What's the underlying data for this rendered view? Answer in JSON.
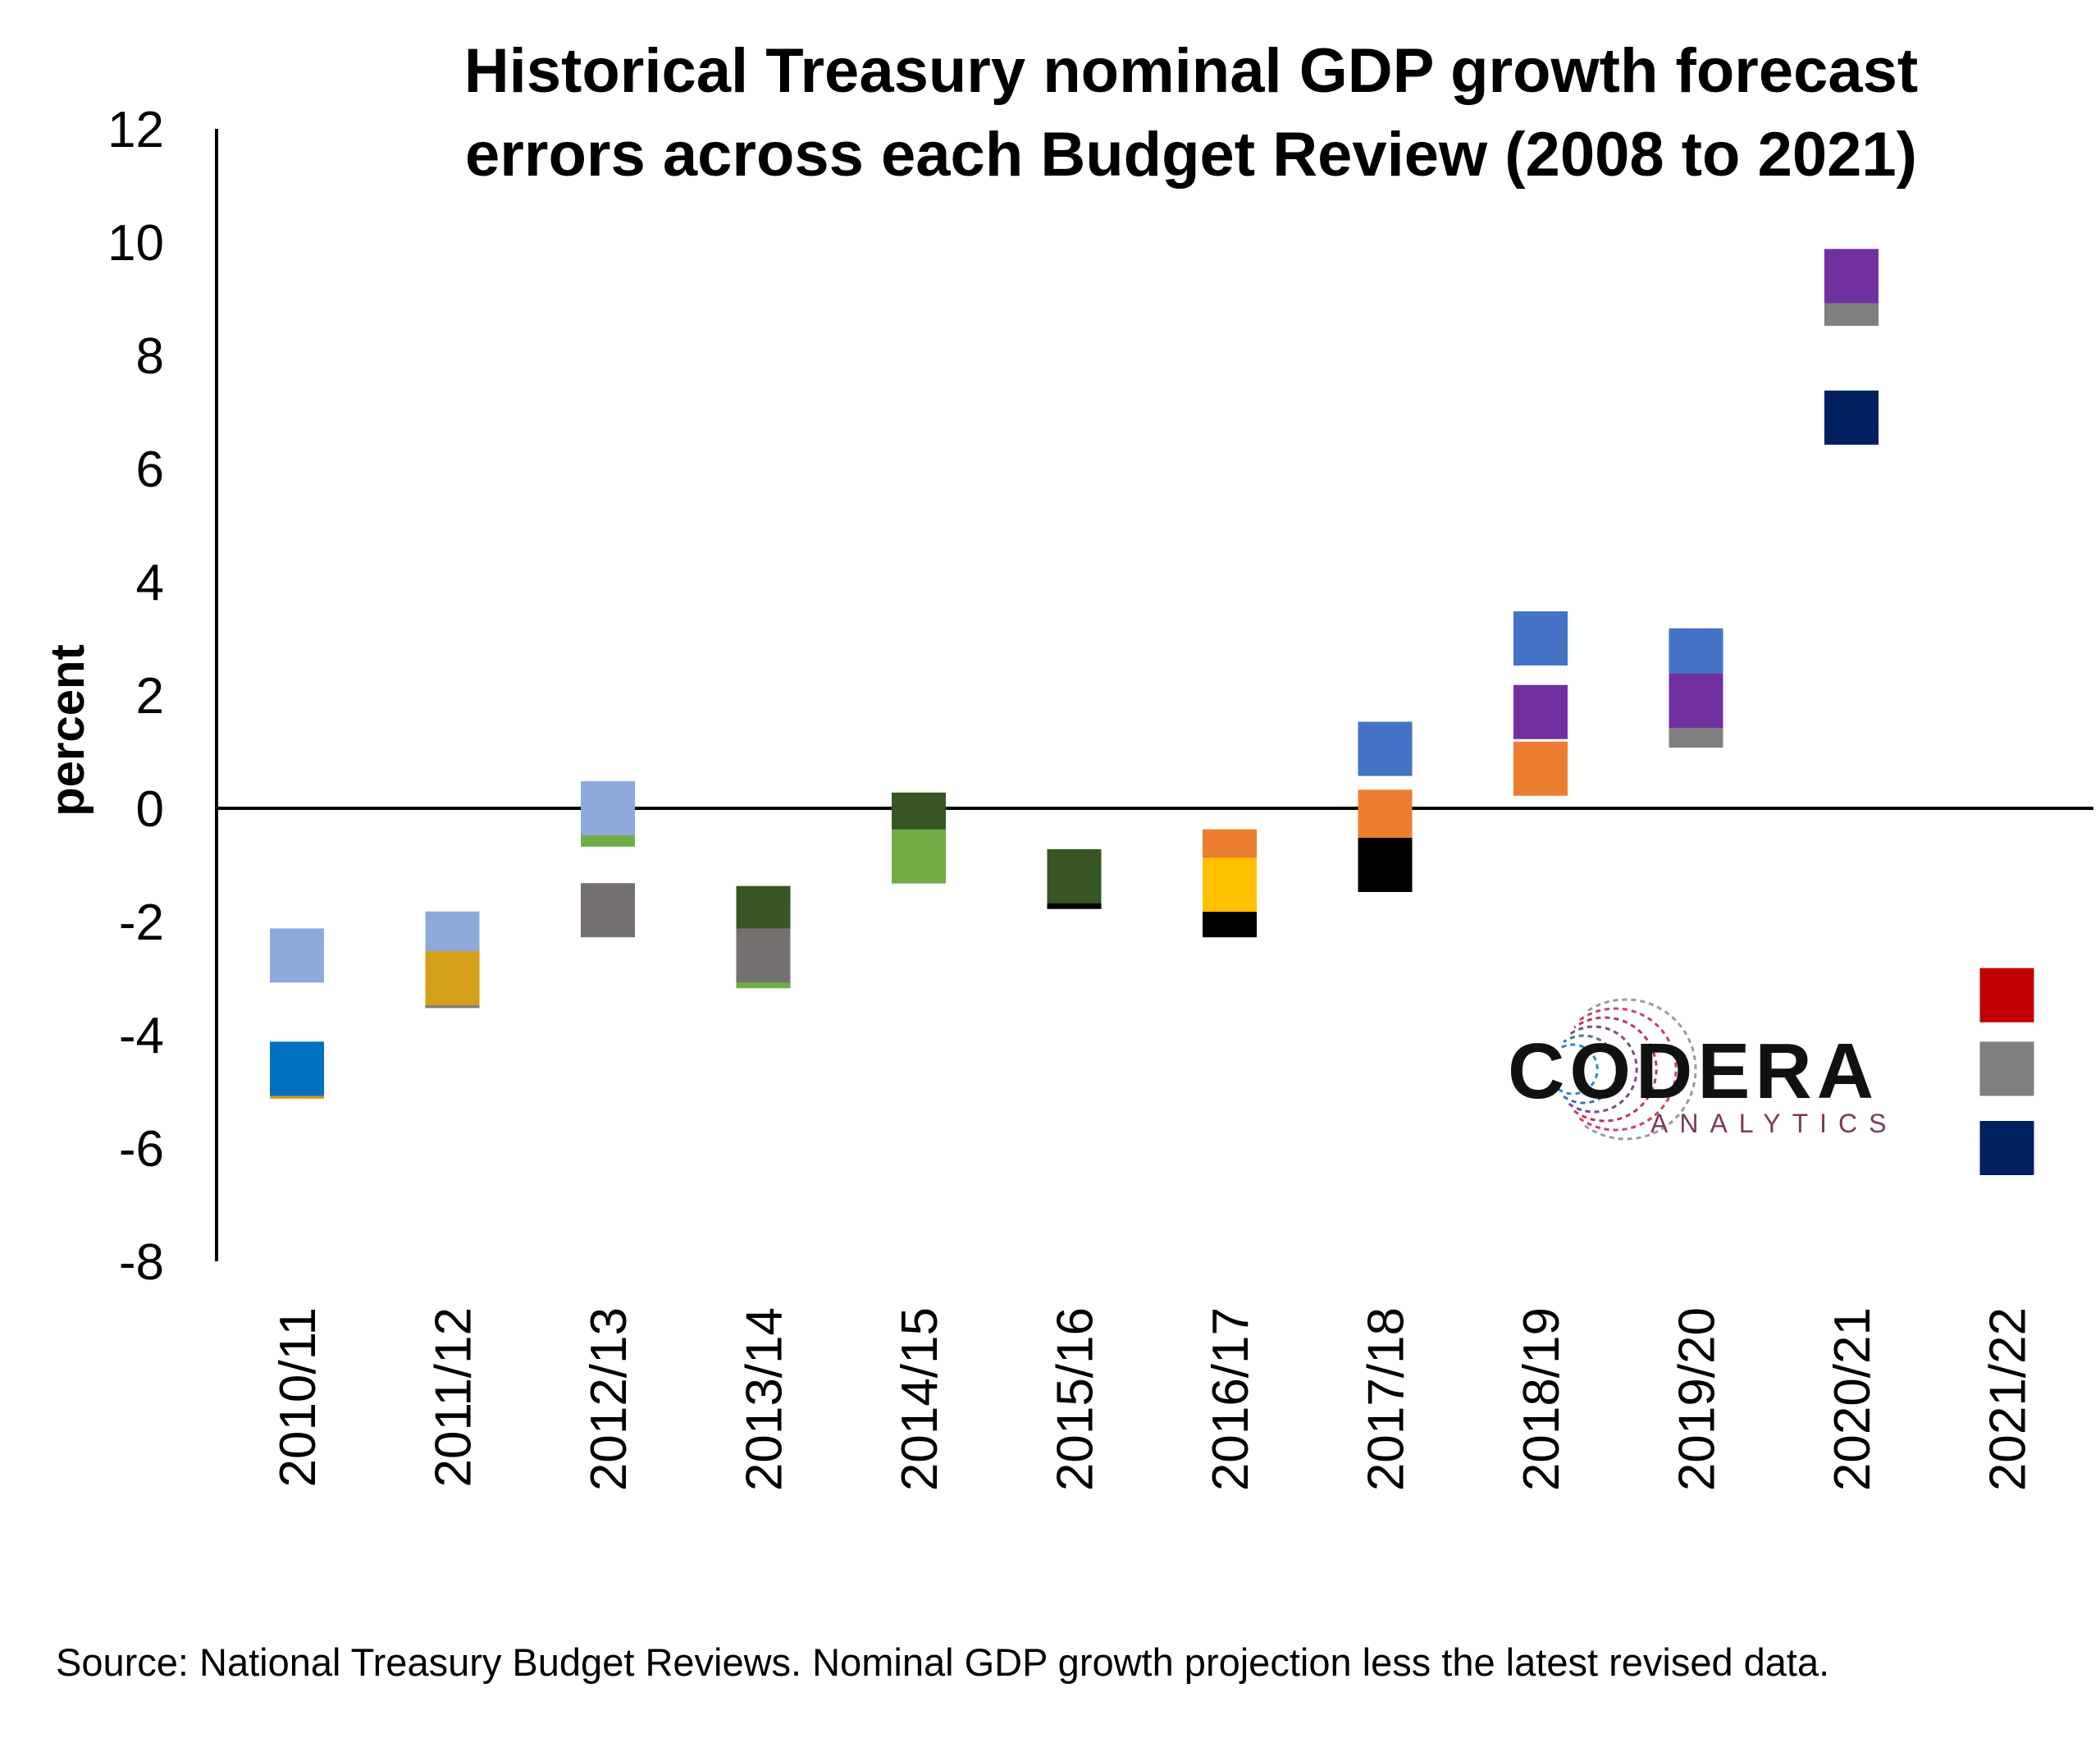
{
  "chart_data": {
    "type": "scatter",
    "title_lines": [
      "Historical Treasury nominal GDP growth forecast",
      "errors across each Budget Review (2008 to 2021)"
    ],
    "ylabel": "percent",
    "xlabel": "",
    "ylim": [
      -8,
      12
    ],
    "yticks": [
      12,
      10,
      8,
      6,
      4,
      2,
      0,
      -2,
      -4,
      -6,
      -8
    ],
    "categories": [
      "2010/11",
      "2011/12",
      "2012/13",
      "2013/14",
      "2014/15",
      "2015/16",
      "2016/17",
      "2017/18",
      "2018/19",
      "2019/20",
      "2020/21",
      "2021/22"
    ],
    "marker": "square",
    "points": [
      {
        "category": "2010/11",
        "y": -4.65,
        "color": "#C59A24"
      },
      {
        "category": "2010/11",
        "y": -4.6,
        "color": "#0070C0"
      },
      {
        "category": "2010/11",
        "y": -2.6,
        "color": "#8EA9DB"
      },
      {
        "category": "2011/12",
        "y": -3.05,
        "color": "#7F7F7F"
      },
      {
        "category": "2011/12",
        "y": -2.3,
        "color": "#8EA9DB"
      },
      {
        "category": "2011/12",
        "y": -3.0,
        "color": "#D4A017"
      },
      {
        "category": "2012/13",
        "y": -1.8,
        "color": "#767171"
      },
      {
        "category": "2012/13",
        "y": -0.2,
        "color": "#70AD47"
      },
      {
        "category": "2012/13",
        "y": 0.0,
        "color": "#8EA9DB"
      },
      {
        "category": "2013/14",
        "y": -2.7,
        "color": "#70AD47"
      },
      {
        "category": "2013/14",
        "y": -1.85,
        "color": "#375623"
      },
      {
        "category": "2013/14",
        "y": -2.6,
        "color": "#767171"
      },
      {
        "category": "2014/15",
        "y": -0.2,
        "color": "#375623"
      },
      {
        "category": "2014/15",
        "y": -0.85,
        "color": "#70AD47"
      },
      {
        "category": "2015/16",
        "y": -1.3,
        "color": "#000000"
      },
      {
        "category": "2015/16",
        "y": -1.2,
        "color": "#375623"
      },
      {
        "category": "2016/17",
        "y": -0.85,
        "color": "#ED7D31"
      },
      {
        "category": "2016/17",
        "y": -1.8,
        "color": "#000000"
      },
      {
        "category": "2016/17",
        "y": -1.35,
        "color": "#FFC000"
      },
      {
        "category": "2017/18",
        "y": 1.05,
        "color": "#4472C4"
      },
      {
        "category": "2017/18",
        "y": -0.15,
        "color": "#ED7D31"
      },
      {
        "category": "2017/18",
        "y": -1.0,
        "color": "#000000"
      },
      {
        "category": "2018/19",
        "y": 3.0,
        "color": "#4472C4"
      },
      {
        "category": "2018/19",
        "y": 0.7,
        "color": "#ED7D31"
      },
      {
        "category": "2018/19",
        "y": 1.7,
        "color": "#7030A0"
      },
      {
        "category": "2019/20",
        "y": 2.7,
        "color": "#4472C4"
      },
      {
        "category": "2019/20",
        "y": 1.55,
        "color": "#7F7F7F"
      },
      {
        "category": "2019/20",
        "y": 1.9,
        "color": "#7030A0"
      },
      {
        "category": "2020/21",
        "y": 6.9,
        "color": "#002060"
      },
      {
        "category": "2020/21",
        "y": 9.0,
        "color": "#7F7F7F"
      },
      {
        "category": "2020/21",
        "y": 9.4,
        "color": "#7030A0"
      },
      {
        "category": "2021/22",
        "y": -3.3,
        "color": "#C00000"
      },
      {
        "category": "2021/22",
        "y": -4.6,
        "color": "#7F7F7F"
      },
      {
        "category": "2021/22",
        "y": -6.0,
        "color": "#002060"
      }
    ],
    "grid": false,
    "legend": "none",
    "source": "Source: National Treasury Budget Reviews. Nominal GDP growth projection less the latest revised data."
  },
  "logo": {
    "name": "CODERA",
    "tagline": "ANALYTICS"
  }
}
